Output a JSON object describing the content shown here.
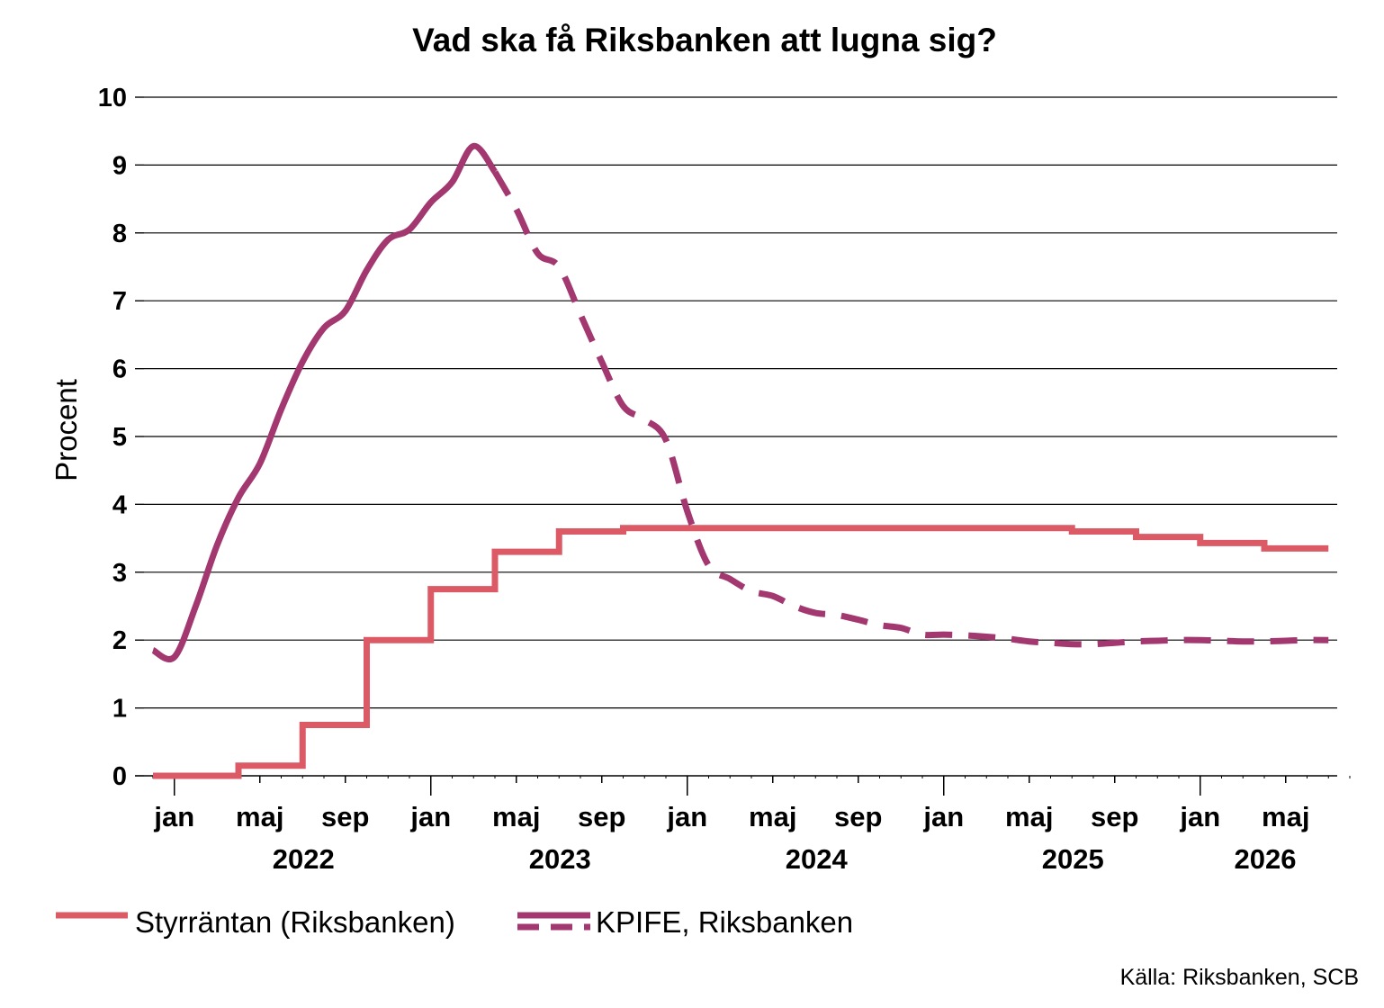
{
  "chart_data": {
    "type": "line",
    "title": "Vad ska få Riksbanken att lugna sig?",
    "ylabel": "Procent",
    "xlabel": "",
    "ylim": [
      0,
      10
    ],
    "yticks": [
      "0",
      "1",
      "2",
      "3",
      "4",
      "5",
      "6",
      "7",
      "8",
      "9",
      "10"
    ],
    "xlim": [
      "2021-12",
      "2026-08"
    ],
    "xticks": [
      {
        "label": "jan",
        "date": "2022-01"
      },
      {
        "label": "maj",
        "date": "2022-05"
      },
      {
        "label": "sep",
        "date": "2022-09"
      },
      {
        "label": "jan",
        "date": "2023-01"
      },
      {
        "label": "maj",
        "date": "2023-05"
      },
      {
        "label": "sep",
        "date": "2023-09"
      },
      {
        "label": "jan",
        "date": "2024-01"
      },
      {
        "label": "maj",
        "date": "2024-05"
      },
      {
        "label": "sep",
        "date": "2024-09"
      },
      {
        "label": "jan",
        "date": "2025-01"
      },
      {
        "label": "maj",
        "date": "2025-05"
      },
      {
        "label": "sep",
        "date": "2025-09"
      },
      {
        "label": "jan",
        "date": "2026-01"
      },
      {
        "label": "maj",
        "date": "2026-05"
      }
    ],
    "years": [
      {
        "label": "2022",
        "date": "2022-07"
      },
      {
        "label": "2023",
        "date": "2023-07"
      },
      {
        "label": "2024",
        "date": "2024-07"
      },
      {
        "label": "2025",
        "date": "2025-07"
      },
      {
        "label": "2026",
        "date": "2026-04"
      }
    ],
    "grid": true,
    "legend_position": "bottom-left",
    "series": [
      {
        "name": "Styrräntan (Riksbanken)",
        "color": "#DC5A66",
        "style": "step",
        "points": [
          {
            "x": "2021-12",
            "y": 0
          },
          {
            "x": "2022-04",
            "y": 0.15
          },
          {
            "x": "2022-07",
            "y": 0.75
          },
          {
            "x": "2022-10",
            "y": 2.0
          },
          {
            "x": "2023-01",
            "y": 2.75
          },
          {
            "x": "2023-04",
            "y": 3.3
          },
          {
            "x": "2023-07",
            "y": 3.6
          },
          {
            "x": "2023-10",
            "y": 3.65
          },
          {
            "x": "2025-07",
            "y": 3.6
          },
          {
            "x": "2025-10",
            "y": 3.52
          },
          {
            "x": "2026-01",
            "y": 3.43
          },
          {
            "x": "2026-04",
            "y": 3.35
          },
          {
            "x": "2026-07",
            "y": 3.35
          }
        ]
      },
      {
        "name": "KPIFE, Riksbanken",
        "color": "#A2386F",
        "style": "solid-then-dashed",
        "outcome": [
          {
            "x": "2021-12",
            "y": 1.85
          },
          {
            "x": "2022-01",
            "y": 1.75
          },
          {
            "x": "2022-02",
            "y": 2.5
          },
          {
            "x": "2022-03",
            "y": 3.4
          },
          {
            "x": "2022-04",
            "y": 4.1
          },
          {
            "x": "2022-05",
            "y": 4.6
          },
          {
            "x": "2022-06",
            "y": 5.4
          },
          {
            "x": "2022-07",
            "y": 6.1
          },
          {
            "x": "2022-08",
            "y": 6.6
          },
          {
            "x": "2022-09",
            "y": 6.85
          },
          {
            "x": "2022-10",
            "y": 7.45
          },
          {
            "x": "2022-11",
            "y": 7.9
          },
          {
            "x": "2022-12",
            "y": 8.05
          },
          {
            "x": "2023-01",
            "y": 8.45
          },
          {
            "x": "2023-02",
            "y": 8.75
          },
          {
            "x": "2023-03",
            "y": 9.28
          },
          {
            "x": "2023-04",
            "y": 8.9
          }
        ],
        "forecast": [
          {
            "x": "2023-04",
            "y": 8.9
          },
          {
            "x": "2023-05",
            "y": 8.35
          },
          {
            "x": "2023-06",
            "y": 7.7
          },
          {
            "x": "2023-07",
            "y": 7.5
          },
          {
            "x": "2023-08",
            "y": 6.8
          },
          {
            "x": "2023-09",
            "y": 6.1
          },
          {
            "x": "2023-10",
            "y": 5.45
          },
          {
            "x": "2023-11",
            "y": 5.25
          },
          {
            "x": "2023-12",
            "y": 4.95
          },
          {
            "x": "2024-01",
            "y": 3.9
          },
          {
            "x": "2024-02",
            "y": 3.1
          },
          {
            "x": "2024-03",
            "y": 2.9
          },
          {
            "x": "2024-04",
            "y": 2.72
          },
          {
            "x": "2024-05",
            "y": 2.65
          },
          {
            "x": "2024-06",
            "y": 2.5
          },
          {
            "x": "2024-07",
            "y": 2.4
          },
          {
            "x": "2024-08",
            "y": 2.37
          },
          {
            "x": "2024-09",
            "y": 2.3
          },
          {
            "x": "2024-10",
            "y": 2.22
          },
          {
            "x": "2024-11",
            "y": 2.18
          },
          {
            "x": "2024-12",
            "y": 2.08
          },
          {
            "x": "2025-01",
            "y": 2.08
          },
          {
            "x": "2025-02",
            "y": 2.07
          },
          {
            "x": "2025-03",
            "y": 2.05
          },
          {
            "x": "2025-04",
            "y": 2.02
          },
          {
            "x": "2025-05",
            "y": 1.98
          },
          {
            "x": "2025-06",
            "y": 1.96
          },
          {
            "x": "2025-07",
            "y": 1.94
          },
          {
            "x": "2025-08",
            "y": 1.94
          },
          {
            "x": "2025-09",
            "y": 1.96
          },
          {
            "x": "2025-10",
            "y": 1.98
          },
          {
            "x": "2025-11",
            "y": 1.99
          },
          {
            "x": "2025-12",
            "y": 2.0
          },
          {
            "x": "2026-01",
            "y": 2.0
          },
          {
            "x": "2026-02",
            "y": 1.99
          },
          {
            "x": "2026-03",
            "y": 1.98
          },
          {
            "x": "2026-04",
            "y": 1.98
          },
          {
            "x": "2026-05",
            "y": 1.99
          },
          {
            "x": "2026-06",
            "y": 2.0
          },
          {
            "x": "2026-07",
            "y": 2.0
          }
        ]
      }
    ],
    "source": "Källa: Riksbanken, SCB"
  }
}
